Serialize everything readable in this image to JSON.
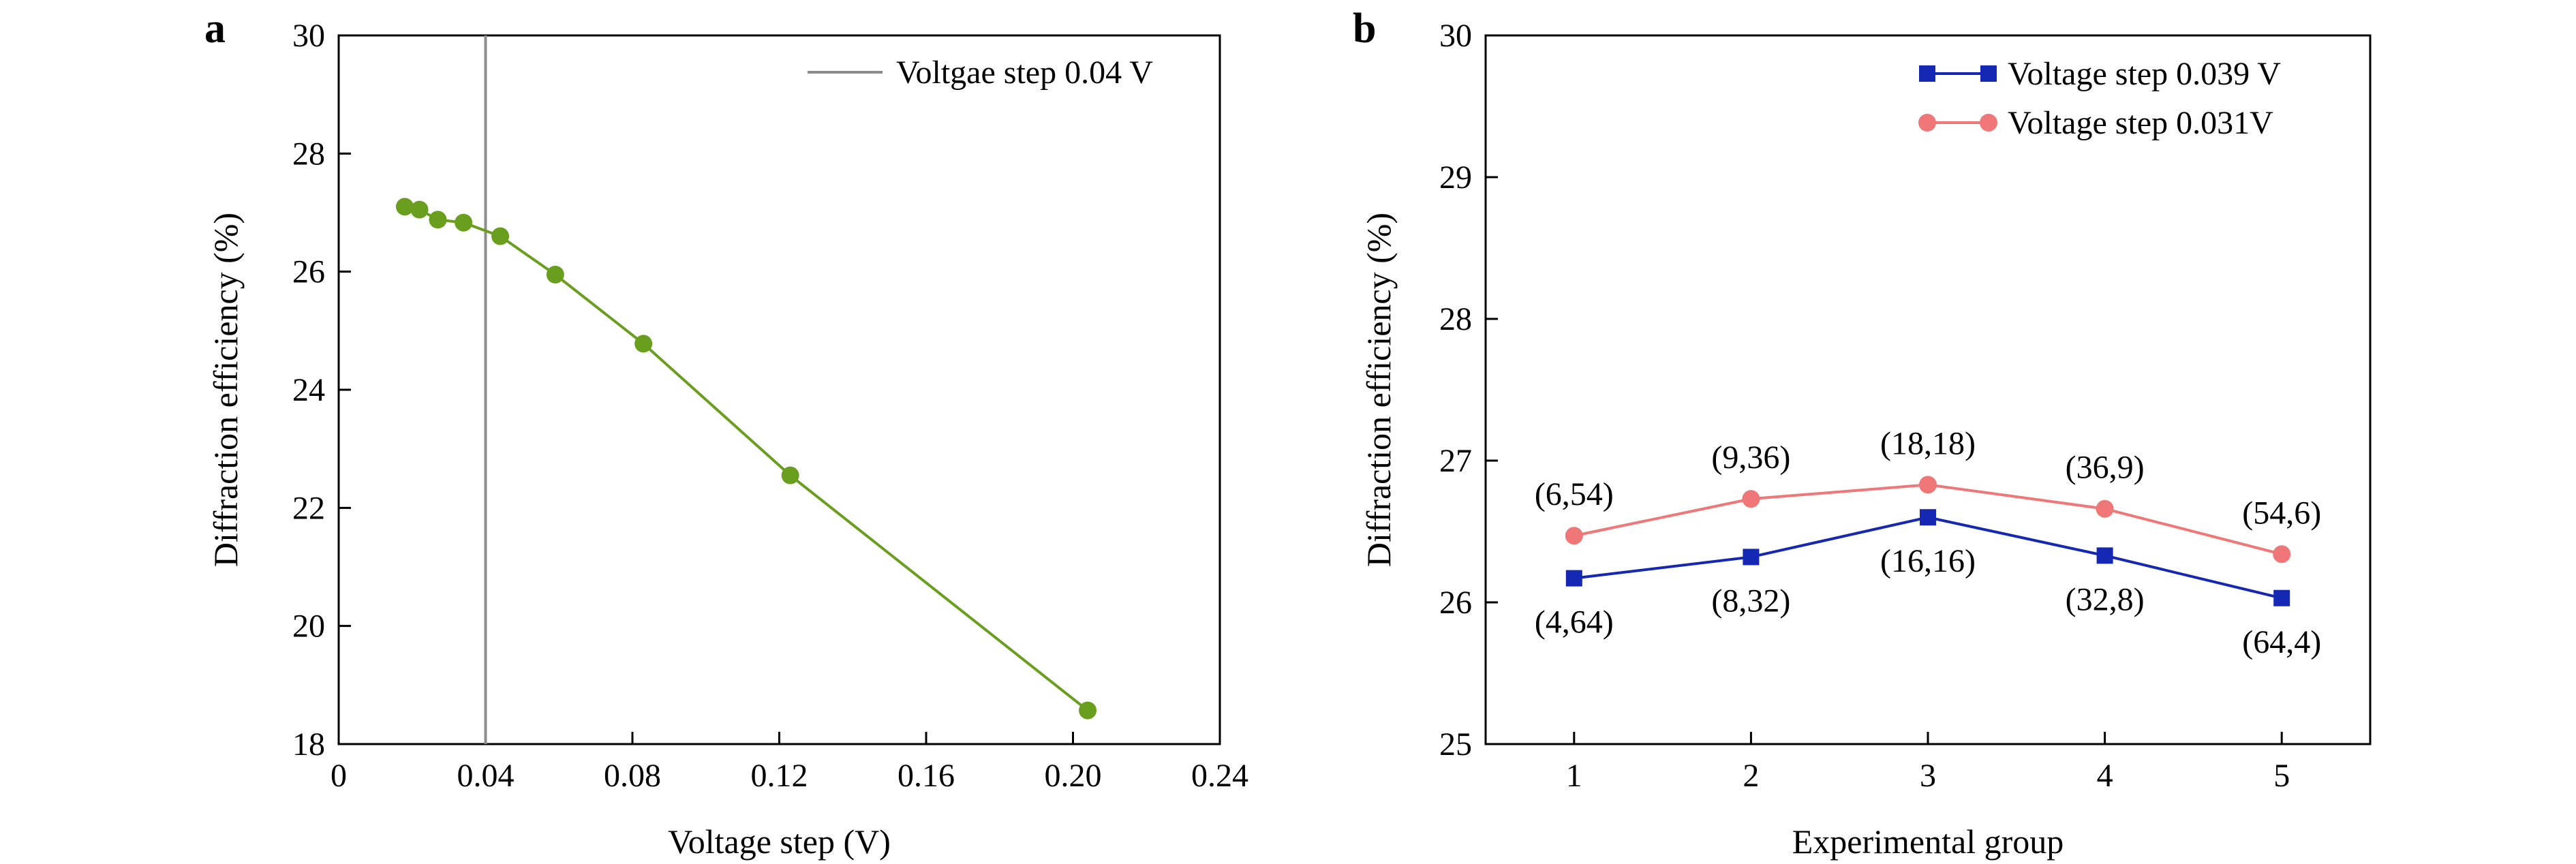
{
  "panels": {
    "a": {
      "letter": "a"
    },
    "b": {
      "letter": "b"
    }
  },
  "chart_data": [
    {
      "id": "a",
      "type": "scatter",
      "title": "",
      "xlabel": "Voltage step (V)",
      "ylabel": "Diffraction efficiency (%)",
      "xlim": [
        0,
        0.24
      ],
      "ylim": [
        18,
        30
      ],
      "xticks": [
        0,
        0.04,
        0.08,
        0.12,
        0.16,
        0.2,
        0.24
      ],
      "xtick_labels": [
        "0",
        "0.04",
        "0.08",
        "0.12",
        "0.16",
        "0.20",
        "0.24"
      ],
      "yticks": [
        18,
        20,
        22,
        24,
        26,
        28,
        30
      ],
      "ytick_labels": [
        "18",
        "20",
        "22",
        "24",
        "26",
        "28",
        "30"
      ],
      "grid": false,
      "legend": "top-right",
      "series": [
        {
          "color": "#6a9e1f",
          "marker": "circle",
          "line": true,
          "x": [
            0.018,
            0.022,
            0.027,
            0.034,
            0.044,
            0.059,
            0.083,
            0.123,
            0.204
          ],
          "y": [
            27.1,
            27.05,
            26.88,
            26.83,
            26.6,
            25.95,
            24.78,
            22.55,
            18.57
          ]
        }
      ],
      "reference_line": {
        "x": 0.04,
        "color": "#8c8c8c",
        "label": "Voltgae step 0.04 V"
      }
    },
    {
      "id": "b",
      "type": "line",
      "title": "",
      "xlabel": "Experimental group",
      "ylabel": "Diffraction efficiency (%)",
      "xlim": [
        0.5,
        5.5
      ],
      "ylim": [
        25,
        30
      ],
      "categories": [
        "1",
        "2",
        "3",
        "4",
        "5"
      ],
      "x": [
        1,
        2,
        3,
        4,
        5
      ],
      "yticks": [
        25,
        26,
        27,
        28,
        29,
        30
      ],
      "ytick_labels": [
        "25",
        "26",
        "27",
        "28",
        "29",
        "30"
      ],
      "grid": false,
      "legend": "top-right",
      "series": [
        {
          "name": "Voltage step 0.039 V",
          "color": "#1428b4",
          "marker": "square",
          "values": [
            26.17,
            26.32,
            26.6,
            26.33,
            26.03
          ],
          "point_labels": [
            "(4,64)",
            "(8,32)",
            "(16,16)",
            "(32,8)",
            "(64,4)"
          ],
          "label_position": "below"
        },
        {
          "name": "Voltage step 0.031V",
          "color": "#f07777",
          "marker": "circle",
          "values": [
            26.47,
            26.73,
            26.83,
            26.66,
            26.34
          ],
          "point_labels": [
            "(6,54)",
            "(9,36)",
            "(18,18)",
            "(36,9)",
            "(54,6)"
          ],
          "label_position": "above"
        }
      ]
    }
  ]
}
